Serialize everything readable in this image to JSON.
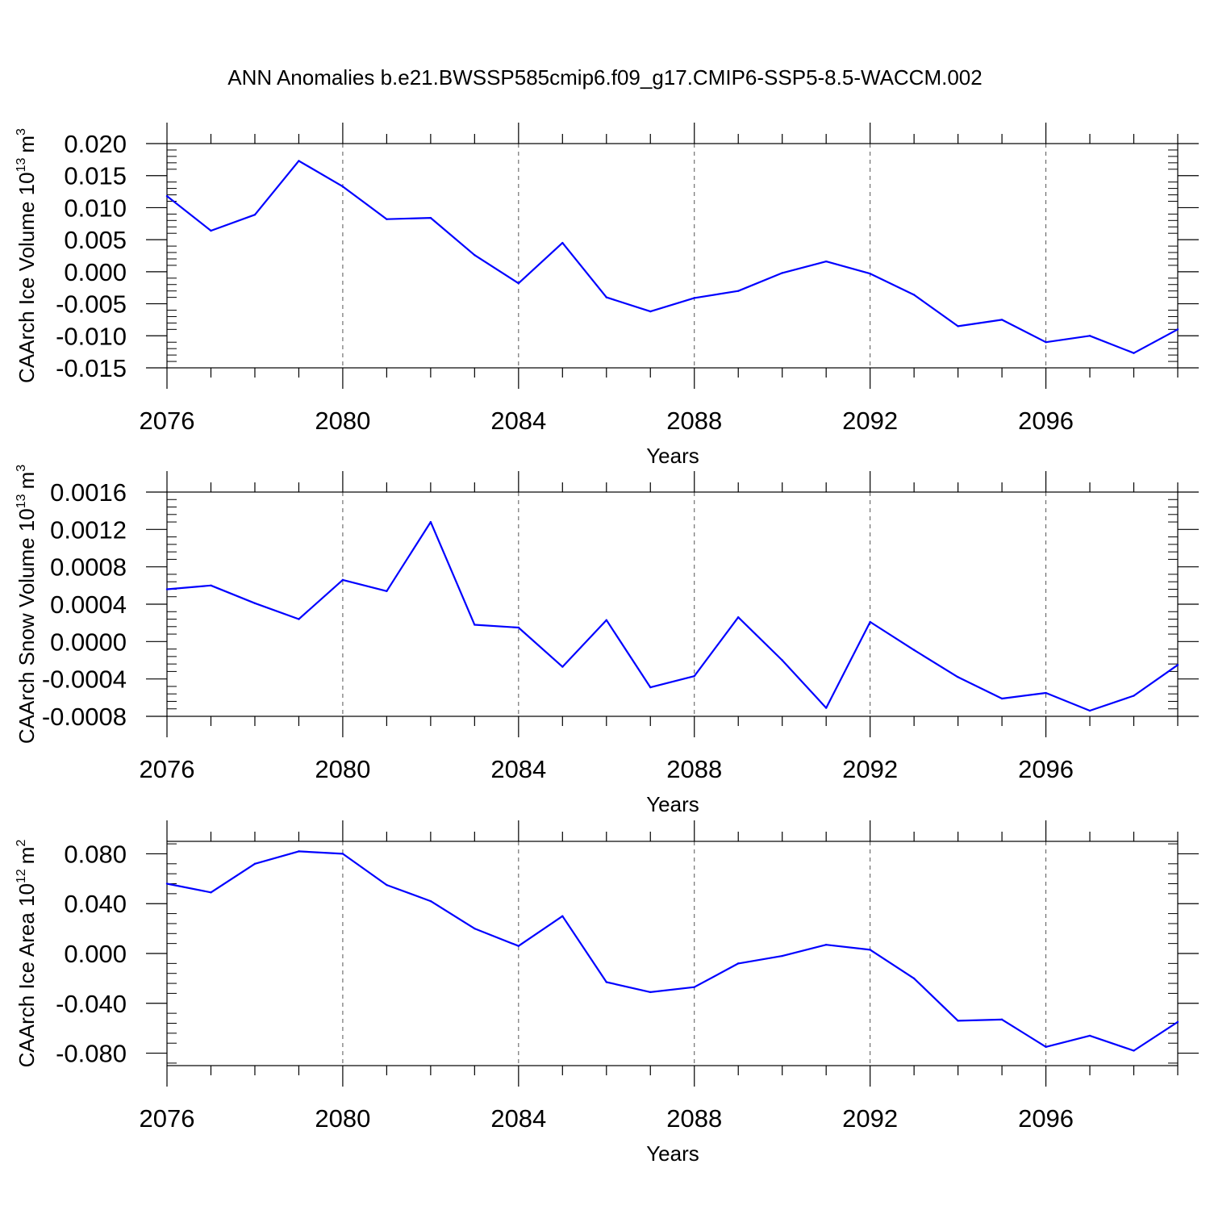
{
  "title": "ANN Anomalies b.e21.BWSSP585cmip6.f09_g17.CMIP6-SSP5-8.5-WACCM.002",
  "chart_data": [
    {
      "type": "line",
      "title": "",
      "xlabel": "Years",
      "ylabel_main": "CAArch Ice Volume 10",
      "ylabel_exp": "13",
      "ylabel_unit": "m",
      "ylabel_unit_exp": "3",
      "xlim": [
        2076,
        2099
      ],
      "ylim": [
        -0.015,
        0.02
      ],
      "x_ticks": [
        2076,
        2080,
        2084,
        2088,
        2092,
        2096
      ],
      "y_ticks": [
        -0.015,
        -0.01,
        -0.005,
        0.0,
        0.005,
        0.01,
        0.015,
        0.02
      ],
      "y_tick_labels": [
        "-0.015",
        "-0.010",
        "-0.005",
        "0.000",
        "0.005",
        "0.010",
        "0.015",
        "0.020"
      ],
      "grid": "dashed vertical at major x ticks",
      "x": [
        2076,
        2077,
        2078,
        2079,
        2080,
        2081,
        2082,
        2083,
        2084,
        2085,
        2086,
        2087,
        2088,
        2089,
        2090,
        2091,
        2092,
        2093,
        2094,
        2095,
        2096,
        2097,
        2098,
        2099
      ],
      "series": [
        {
          "color": "#0000ff",
          "values": [
            0.0118,
            0.0064,
            0.0089,
            0.0173,
            0.0133,
            0.0082,
            0.0084,
            0.0026,
            -0.0018,
            0.0045,
            -0.004,
            -0.0062,
            -0.0041,
            -0.003,
            -0.0002,
            0.0016,
            -0.0003,
            -0.0036,
            -0.0085,
            -0.0075,
            -0.011,
            -0.01,
            -0.0127,
            -0.009
          ]
        }
      ]
    },
    {
      "type": "line",
      "title": "",
      "xlabel": "Years",
      "ylabel_main": "CAArch Snow Volume 10",
      "ylabel_exp": "13",
      "ylabel_unit": "m",
      "ylabel_unit_exp": "3",
      "xlim": [
        2076,
        2099
      ],
      "ylim": [
        -0.0008,
        0.0016
      ],
      "x_ticks": [
        2076,
        2080,
        2084,
        2088,
        2092,
        2096
      ],
      "y_ticks": [
        -0.0008,
        -0.0004,
        0.0,
        0.0004,
        0.0008,
        0.0012,
        0.0016
      ],
      "y_tick_labels": [
        "-0.0008",
        "-0.0004",
        "0.0000",
        "0.0004",
        "0.0008",
        "0.0012",
        "0.0016"
      ],
      "grid": "dashed vertical at major x ticks",
      "x": [
        2076,
        2077,
        2078,
        2079,
        2080,
        2081,
        2082,
        2083,
        2084,
        2085,
        2086,
        2087,
        2088,
        2089,
        2090,
        2091,
        2092,
        2093,
        2094,
        2095,
        2096,
        2097,
        2098,
        2099
      ],
      "series": [
        {
          "color": "#0000ff",
          "values": [
            0.00056,
            0.0006,
            0.00041,
            0.00024,
            0.00066,
            0.00054,
            0.00128,
            0.00018,
            0.00015,
            -0.00027,
            0.00023,
            -0.00049,
            -0.00037,
            0.00026,
            -0.0002,
            -0.00071,
            0.00021,
            -9e-05,
            -0.00038,
            -0.00061,
            -0.00055,
            -0.00074,
            -0.00058,
            -0.00025
          ]
        }
      ]
    },
    {
      "type": "line",
      "title": "",
      "xlabel": "Years",
      "ylabel_main": "CAArch Ice Area 10",
      "ylabel_exp": "12",
      "ylabel_unit": "m",
      "ylabel_unit_exp": "2",
      "xlim": [
        2076,
        2099
      ],
      "ylim": [
        -0.09,
        0.09
      ],
      "x_ticks": [
        2076,
        2080,
        2084,
        2088,
        2092,
        2096
      ],
      "y_ticks": [
        -0.08,
        -0.04,
        0.0,
        0.04,
        0.08
      ],
      "y_tick_labels": [
        "-0.080",
        "-0.040",
        "0.000",
        "0.040",
        "0.080"
      ],
      "grid": "dashed vertical at major x ticks",
      "x": [
        2076,
        2077,
        2078,
        2079,
        2080,
        2081,
        2082,
        2083,
        2084,
        2085,
        2086,
        2087,
        2088,
        2089,
        2090,
        2091,
        2092,
        2093,
        2094,
        2095,
        2096,
        2097,
        2098,
        2099
      ],
      "series": [
        {
          "color": "#0000ff",
          "values": [
            0.056,
            0.049,
            0.072,
            0.082,
            0.08,
            0.055,
            0.042,
            0.02,
            0.006,
            0.03,
            -0.023,
            -0.031,
            -0.027,
            -0.008,
            -0.002,
            0.007,
            0.003,
            -0.02,
            -0.054,
            -0.053,
            -0.075,
            -0.066,
            -0.078,
            -0.055
          ]
        }
      ]
    }
  ]
}
